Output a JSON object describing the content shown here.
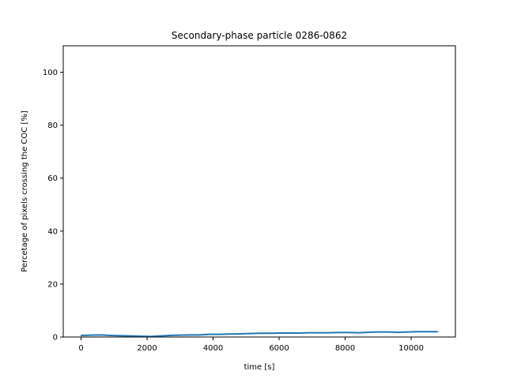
{
  "chart_data": {
    "type": "line",
    "title": "Secondary-phase particle 0286-0862",
    "xlabel": "time [s]",
    "ylabel": "Percetage of pixels crossing the COC [%]",
    "xlim": [
      -540,
      11340
    ],
    "ylim": [
      0,
      110
    ],
    "xticks": [
      0,
      2000,
      4000,
      6000,
      8000,
      10000
    ],
    "yticks": [
      0,
      20,
      40,
      60,
      80,
      100
    ],
    "grid": false,
    "line_color": "#1f77b4",
    "series": [
      {
        "x": [
          0,
          300,
          600,
          900,
          1200,
          1500,
          1800,
          2100,
          2400,
          2700,
          3000,
          3300,
          3600,
          3900,
          4200,
          4500,
          4800,
          5100,
          5400,
          5700,
          6000,
          6300,
          6600,
          6900,
          7200,
          7500,
          7800,
          8100,
          8400,
          8700,
          9000,
          9300,
          9600,
          9900,
          10200,
          10500,
          10800
        ],
        "y": [
          0.6,
          0.7,
          0.8,
          0.6,
          0.5,
          0.4,
          0.3,
          0.2,
          0.4,
          0.6,
          0.7,
          0.8,
          0.8,
          1.0,
          1.0,
          1.1,
          1.2,
          1.3,
          1.4,
          1.4,
          1.5,
          1.5,
          1.5,
          1.6,
          1.6,
          1.6,
          1.7,
          1.7,
          1.6,
          1.8,
          1.9,
          1.9,
          1.8,
          1.9,
          2.0,
          2.0,
          2.0
        ]
      }
    ]
  }
}
